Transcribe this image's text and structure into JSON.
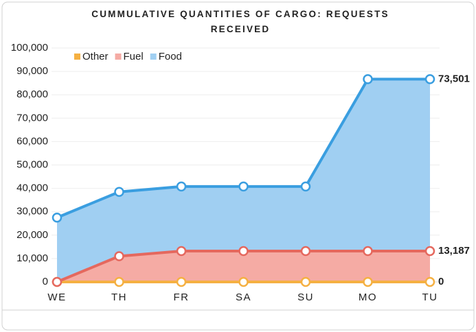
{
  "chart_data": {
    "type": "stacked_area",
    "title": "CUMMULATIVE QUANTITIES OF CARGO: REQUESTS RECEIVED",
    "categories": [
      "WE",
      "TH",
      "FR",
      "SA",
      "SU",
      "MO",
      "TU"
    ],
    "series": [
      {
        "name": "Other",
        "color": "#f5b042",
        "values": [
          0,
          0,
          0,
          0,
          0,
          0,
          0
        ]
      },
      {
        "name": "Fuel",
        "color": "#e5685e",
        "fill": "#f5aba4",
        "values": [
          0,
          11000,
          13187,
          13187,
          13187,
          13187,
          13187
        ],
        "value_labels": [
          null,
          null,
          null,
          null,
          null,
          null,
          "13,187"
        ]
      },
      {
        "name": "Food",
        "color": "#3a9ee0",
        "fill": "#a0cff2",
        "values": [
          27500,
          27500,
          27600,
          27600,
          27600,
          73501,
          73501
        ],
        "value_labels": [
          null,
          null,
          null,
          null,
          null,
          null,
          "73,501"
        ]
      }
    ],
    "ylim": [
      0,
      100000
    ],
    "yticks": [
      0,
      {
        "value": 10000,
        "label": "10,000"
      },
      {
        "value": 20000,
        "label": "20,000"
      },
      {
        "value": 30000,
        "label": "30,000"
      },
      {
        "value": 40000,
        "label": "40,000"
      },
      {
        "value": 50000,
        "label": "50,000"
      },
      {
        "value": 60000,
        "label": "60,000"
      },
      {
        "value": 70000,
        "label": "70,000"
      },
      {
        "value": 80000,
        "label": "80,000"
      },
      {
        "value": 90000,
        "label": "90,000"
      },
      {
        "value": 100000,
        "label": "100,000"
      }
    ],
    "grid": true,
    "legend": "top-left"
  }
}
